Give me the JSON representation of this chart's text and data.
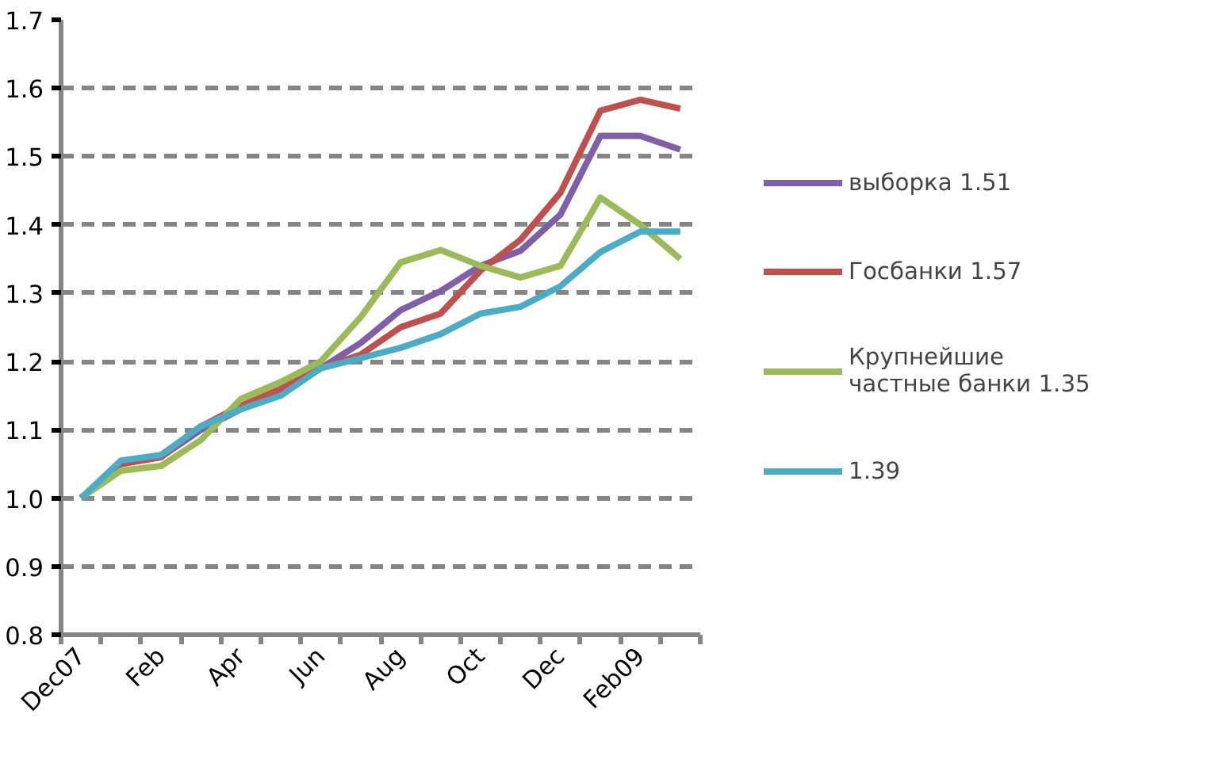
{
  "chart_data": {
    "type": "line",
    "categories": [
      "Dec07",
      null,
      "Feb",
      null,
      "Apr",
      null,
      "Jun",
      null,
      "Aug",
      null,
      "Oct",
      null,
      "Dec",
      null,
      "Feb09",
      null
    ],
    "series": [
      {
        "name": "выборка 1.51",
        "color": "#7f60a8",
        "values": [
          1.0,
          1.05,
          1.06,
          1.1,
          1.13,
          1.155,
          1.19,
          1.227,
          1.275,
          1.303,
          1.34,
          1.362,
          1.415,
          1.53,
          1.53,
          1.51
        ]
      },
      {
        "name": "Госбанки 1.57",
        "color": "#c0504d",
        "values": [
          1.0,
          1.05,
          1.06,
          1.105,
          1.135,
          1.16,
          1.19,
          1.21,
          1.25,
          1.27,
          1.333,
          1.378,
          1.447,
          1.567,
          1.583,
          1.57
        ]
      },
      {
        "name": "Крупнейшие\nчастные банки 1.35",
        "color": "#9bbb59",
        "values": [
          1.0,
          1.04,
          1.047,
          1.085,
          1.145,
          1.17,
          1.2,
          1.265,
          1.345,
          1.363,
          1.34,
          1.323,
          1.34,
          1.44,
          1.4,
          1.35
        ]
      },
      {
        "name": "1.39",
        "color": "#4bacc6",
        "values": [
          1.0,
          1.055,
          1.063,
          1.105,
          1.13,
          1.15,
          1.19,
          1.205,
          1.22,
          1.24,
          1.27,
          1.28,
          1.31,
          1.36,
          1.39,
          1.39
        ]
      }
    ],
    "ylim": [
      0.8,
      1.7
    ],
    "yticks": [
      {
        "value": 0.8,
        "label": "0.8"
      },
      {
        "value": 0.9,
        "label": "0.9"
      },
      {
        "value": 1.0,
        "label": "1.0"
      },
      {
        "value": 1.1,
        "label": "1.1"
      },
      {
        "value": 1.2,
        "label": "1.2"
      },
      {
        "value": 1.3,
        "label": "1.3"
      },
      {
        "value": 1.4,
        "label": "1.4"
      },
      {
        "value": 1.5,
        "label": "1.5"
      },
      {
        "value": 1.6,
        "label": "1.6"
      },
      {
        "value": 1.7,
        "label": "1.7"
      }
    ],
    "grid": "y",
    "legend": "right",
    "marker": "none",
    "line_style": "solid"
  }
}
